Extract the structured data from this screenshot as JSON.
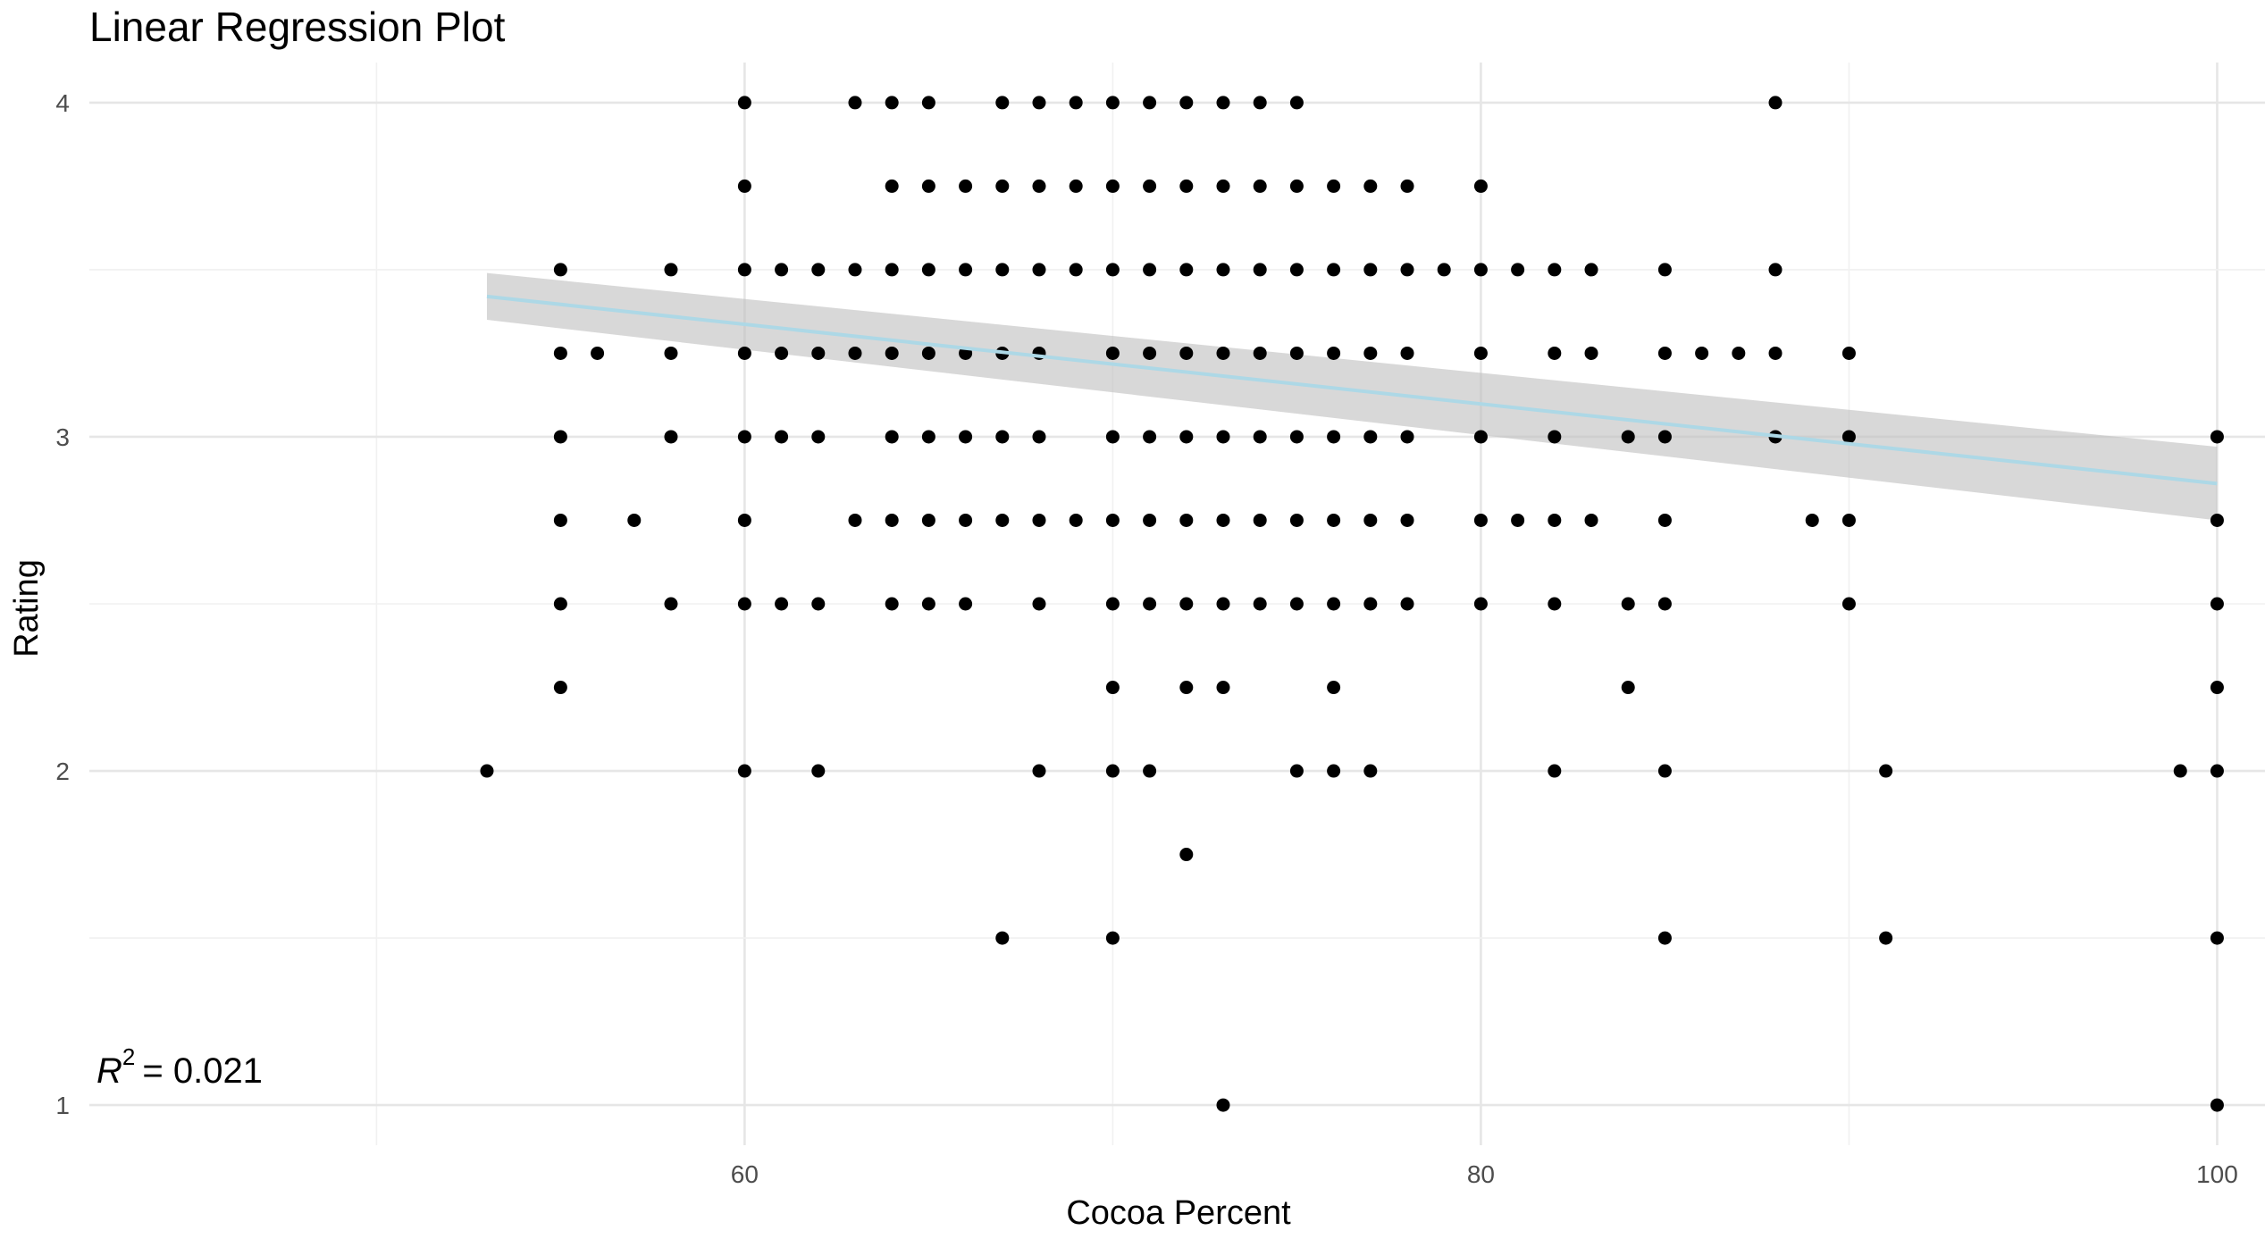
{
  "chart_data": {
    "type": "scatter",
    "title": "Linear Regression Plot",
    "xlabel": "Cocoa Percent",
    "ylabel": "Rating",
    "xlim": [
      42.2,
      101.3
    ],
    "ylim": [
      0.88,
      4.12
    ],
    "x_ticks": [
      60,
      80,
      100
    ],
    "y_ticks": [
      1,
      2,
      3,
      4
    ],
    "grid": true,
    "annotation": {
      "r2_label": "R",
      "r2_exp": "2",
      "r2_value": "= 0.021"
    },
    "fit_line": {
      "x": [
        53,
        100
      ],
      "y": [
        3.42,
        2.86
      ],
      "ci_upper": [
        3.49,
        2.97
      ],
      "ci_lower": [
        3.35,
        2.75
      ],
      "color": "#add8e6",
      "band_color": "#bebebe"
    },
    "point_color": "#000000",
    "points": [
      [
        60,
        4
      ],
      [
        63,
        4
      ],
      [
        64,
        4
      ],
      [
        65,
        4
      ],
      [
        67,
        4
      ],
      [
        68,
        4
      ],
      [
        69,
        4
      ],
      [
        70,
        4
      ],
      [
        71,
        4
      ],
      [
        72,
        4
      ],
      [
        73,
        4
      ],
      [
        74,
        4
      ],
      [
        75,
        4
      ],
      [
        88,
        4
      ],
      [
        60,
        3.75
      ],
      [
        64,
        3.75
      ],
      [
        65,
        3.75
      ],
      [
        66,
        3.75
      ],
      [
        67,
        3.75
      ],
      [
        68,
        3.75
      ],
      [
        69,
        3.75
      ],
      [
        70,
        3.75
      ],
      [
        71,
        3.75
      ],
      [
        72,
        3.75
      ],
      [
        73,
        3.75
      ],
      [
        74,
        3.75
      ],
      [
        75,
        3.75
      ],
      [
        76,
        3.75
      ],
      [
        77,
        3.75
      ],
      [
        78,
        3.75
      ],
      [
        80,
        3.75
      ],
      [
        55,
        3.5
      ],
      [
        58,
        3.5
      ],
      [
        60,
        3.5
      ],
      [
        61,
        3.5
      ],
      [
        62,
        3.5
      ],
      [
        63,
        3.5
      ],
      [
        64,
        3.5
      ],
      [
        65,
        3.5
      ],
      [
        66,
        3.5
      ],
      [
        67,
        3.5
      ],
      [
        68,
        3.5
      ],
      [
        69,
        3.5
      ],
      [
        70,
        3.5
      ],
      [
        71,
        3.5
      ],
      [
        72,
        3.5
      ],
      [
        73,
        3.5
      ],
      [
        74,
        3.5
      ],
      [
        75,
        3.5
      ],
      [
        76,
        3.5
      ],
      [
        77,
        3.5
      ],
      [
        78,
        3.5
      ],
      [
        79,
        3.5
      ],
      [
        80,
        3.5
      ],
      [
        81,
        3.5
      ],
      [
        82,
        3.5
      ],
      [
        83,
        3.5
      ],
      [
        85,
        3.5
      ],
      [
        88,
        3.5
      ],
      [
        55,
        3.25
      ],
      [
        56,
        3.25
      ],
      [
        58,
        3.25
      ],
      [
        60,
        3.25
      ],
      [
        61,
        3.25
      ],
      [
        62,
        3.25
      ],
      [
        63,
        3.25
      ],
      [
        64,
        3.25
      ],
      [
        65,
        3.25
      ],
      [
        66,
        3.25
      ],
      [
        67,
        3.25
      ],
      [
        68,
        3.25
      ],
      [
        70,
        3.25
      ],
      [
        71,
        3.25
      ],
      [
        72,
        3.25
      ],
      [
        73,
        3.25
      ],
      [
        74,
        3.25
      ],
      [
        75,
        3.25
      ],
      [
        76,
        3.25
      ],
      [
        77,
        3.25
      ],
      [
        78,
        3.25
      ],
      [
        80,
        3.25
      ],
      [
        82,
        3.25
      ],
      [
        83,
        3.25
      ],
      [
        85,
        3.25
      ],
      [
        86,
        3.25
      ],
      [
        87,
        3.25
      ],
      [
        88,
        3.25
      ],
      [
        90,
        3.25
      ],
      [
        55,
        3
      ],
      [
        58,
        3
      ],
      [
        60,
        3
      ],
      [
        61,
        3
      ],
      [
        62,
        3
      ],
      [
        64,
        3
      ],
      [
        65,
        3
      ],
      [
        66,
        3
      ],
      [
        67,
        3
      ],
      [
        68,
        3
      ],
      [
        70,
        3
      ],
      [
        71,
        3
      ],
      [
        72,
        3
      ],
      [
        73,
        3
      ],
      [
        74,
        3
      ],
      [
        75,
        3
      ],
      [
        76,
        3
      ],
      [
        77,
        3
      ],
      [
        78,
        3
      ],
      [
        80,
        3
      ],
      [
        82,
        3
      ],
      [
        84,
        3
      ],
      [
        85,
        3
      ],
      [
        88,
        3
      ],
      [
        90,
        3
      ],
      [
        100,
        3
      ],
      [
        55,
        2.75
      ],
      [
        57,
        2.75
      ],
      [
        60,
        2.75
      ],
      [
        63,
        2.75
      ],
      [
        64,
        2.75
      ],
      [
        65,
        2.75
      ],
      [
        66,
        2.75
      ],
      [
        67,
        2.75
      ],
      [
        68,
        2.75
      ],
      [
        69,
        2.75
      ],
      [
        70,
        2.75
      ],
      [
        71,
        2.75
      ],
      [
        72,
        2.75
      ],
      [
        73,
        2.75
      ],
      [
        74,
        2.75
      ],
      [
        75,
        2.75
      ],
      [
        76,
        2.75
      ],
      [
        77,
        2.75
      ],
      [
        78,
        2.75
      ],
      [
        80,
        2.75
      ],
      [
        81,
        2.75
      ],
      [
        82,
        2.75
      ],
      [
        83,
        2.75
      ],
      [
        85,
        2.75
      ],
      [
        89,
        2.75
      ],
      [
        90,
        2.75
      ],
      [
        100,
        2.75
      ],
      [
        55,
        2.5
      ],
      [
        58,
        2.5
      ],
      [
        60,
        2.5
      ],
      [
        61,
        2.5
      ],
      [
        62,
        2.5
      ],
      [
        64,
        2.5
      ],
      [
        65,
        2.5
      ],
      [
        66,
        2.5
      ],
      [
        68,
        2.5
      ],
      [
        70,
        2.5
      ],
      [
        71,
        2.5
      ],
      [
        72,
        2.5
      ],
      [
        73,
        2.5
      ],
      [
        74,
        2.5
      ],
      [
        75,
        2.5
      ],
      [
        76,
        2.5
      ],
      [
        77,
        2.5
      ],
      [
        78,
        2.5
      ],
      [
        80,
        2.5
      ],
      [
        82,
        2.5
      ],
      [
        84,
        2.5
      ],
      [
        85,
        2.5
      ],
      [
        90,
        2.5
      ],
      [
        100,
        2.5
      ],
      [
        55,
        2.25
      ],
      [
        70,
        2.25
      ],
      [
        72,
        2.25
      ],
      [
        73,
        2.25
      ],
      [
        76,
        2.25
      ],
      [
        84,
        2.25
      ],
      [
        100,
        2.25
      ],
      [
        53,
        2
      ],
      [
        60,
        2
      ],
      [
        62,
        2
      ],
      [
        68,
        2
      ],
      [
        70,
        2
      ],
      [
        71,
        2
      ],
      [
        75,
        2
      ],
      [
        76,
        2
      ],
      [
        77,
        2
      ],
      [
        82,
        2
      ],
      [
        85,
        2
      ],
      [
        91,
        2
      ],
      [
        99,
        2
      ],
      [
        100,
        2
      ],
      [
        72,
        1.75
      ],
      [
        67,
        1.5
      ],
      [
        70,
        1.5
      ],
      [
        85,
        1.5
      ],
      [
        91,
        1.5
      ],
      [
        100,
        1.5
      ],
      [
        73,
        1
      ],
      [
        100,
        1
      ]
    ]
  }
}
